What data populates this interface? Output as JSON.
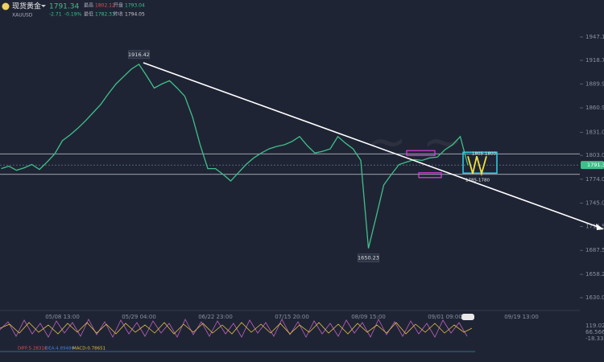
{
  "header": {
    "title": "现货黄金",
    "price": "1791.34",
    "change": "-2.71",
    "change_pct": "-0.19%",
    "symbol": "XAUUSD",
    "stats": [
      {
        "label": "最高",
        "value": "1802.12"
      },
      {
        "label": "开盘",
        "value": "1793.04"
      },
      {
        "label": "最低",
        "value": "1782.33"
      },
      {
        "label": "昨收",
        "value": "1794.05"
      }
    ]
  },
  "chart_data": {
    "type": "line",
    "color": "#3fbf8a",
    "categories": [
      null,
      null,
      null,
      null,
      null,
      null,
      null,
      null,
      "05/08 13:00",
      null,
      null,
      null,
      null,
      null,
      null,
      null,
      null,
      null,
      "05/29 04:00",
      null,
      null,
      null,
      null,
      null,
      null,
      null,
      null,
      null,
      "06/22 23:00",
      null,
      null,
      null,
      null,
      null,
      null,
      null,
      null,
      null,
      "07/15 20:00",
      null,
      null,
      null,
      null,
      null,
      null,
      null,
      null,
      null,
      "08/09 15:00",
      null,
      null,
      null,
      null,
      null,
      null,
      null,
      null,
      null,
      "09/01 09:00",
      null,
      null,
      null,
      null,
      null,
      null,
      null,
      null,
      null,
      "09/19 13:00",
      null
    ],
    "values": [
      1787,
      1790,
      1785,
      1788,
      1792,
      1786,
      1795,
      1805,
      1821,
      1828,
      1836,
      1845,
      1855,
      1865,
      1878,
      1890,
      1899,
      1908,
      1914,
      1900,
      1885,
      1890,
      1894,
      1885,
      1875,
      1850,
      1816,
      1787,
      1787,
      1780,
      1772,
      1782,
      1792,
      1800,
      1806,
      1811,
      1814,
      1816,
      1820,
      1826,
      1815,
      1806,
      1808,
      1811,
      1826,
      1818,
      1811,
      1797,
      1690,
      1728,
      1767,
      1780,
      1792,
      1795,
      1798,
      1797,
      1800,
      1801,
      1810,
      1816,
      1826,
      1791,
      null,
      null,
      null,
      null,
      null,
      null,
      null,
      null
    ],
    "ylim": [
      1630.01,
      1947.13
    ],
    "yticks": [
      1630.01,
      1658.27,
      1687.53,
      1716.54,
      1745.09,
      1774.07,
      1803.06,
      1831.09,
      1860.95,
      1889.93,
      1918.75,
      1947.13
    ],
    "hlines": [
      1805,
      1780
    ],
    "last_price": 1791.34,
    "annotations": [
      "1916.42",
      "1650.23",
      "1805-1800",
      "1785-1780"
    ],
    "macd": {
      "labels": [
        "DIFF:5.28318",
        "DEA:4.89486",
        "MACD:0.78651"
      ],
      "scale": [
        "119.023",
        "66.5661",
        "-18.3395"
      ]
    }
  }
}
